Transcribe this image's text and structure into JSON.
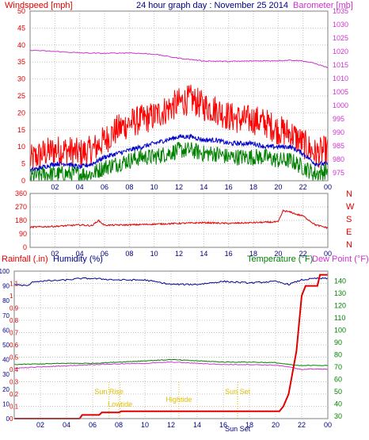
{
  "header": {
    "wind_title": "Windspeed [mph]",
    "graph_title": "24 hour graph day : November 25 2014",
    "baro_title": "Barometer [mb]"
  },
  "direction_labels": [
    "N",
    "W",
    "S",
    "E",
    "N"
  ],
  "bottom_header": {
    "rain_title": "Rainfall (.in)",
    "humidity_title": "Humidity (%)",
    "temp_title": "Temperature (°F)",
    "dew_title": "Dew Point (°F)"
  },
  "colors": {
    "wind": "#e00000",
    "gust": "#ff0000",
    "avg": "#0000cc",
    "low": "#008000",
    "baro": "#cc33cc",
    "rain": "#e00000",
    "humidity": "#00008b",
    "temp": "#008000",
    "dew": "#cc33cc",
    "annot": "#e0c000"
  },
  "chart_data": [
    {
      "type": "line",
      "title": "24 hour graph day : November 25 2014",
      "ylabel": "Windspeed [mph]",
      "y2label": "Barometer [mb]",
      "x_ticks": [
        "02",
        "04",
        "06",
        "08",
        "10",
        "12",
        "14",
        "16",
        "18",
        "20",
        "22",
        "00"
      ],
      "ylim": [
        0,
        50
      ],
      "y_ticks": [
        0,
        5,
        10,
        15,
        20,
        25,
        30,
        35,
        40,
        45,
        50
      ],
      "y2lim": [
        972,
        1035
      ],
      "y2_ticks": [
        975,
        980,
        985,
        990,
        995,
        1000,
        1005,
        1010,
        1015,
        1020,
        1025,
        1030,
        1035
      ],
      "grid": true,
      "series": [
        {
          "name": "Gust",
          "x": [
            0,
            1,
            2,
            3,
            4,
            5,
            6,
            7,
            8,
            9,
            10,
            11,
            12,
            13,
            14,
            15,
            16,
            17,
            18,
            19,
            20,
            21,
            22,
            23,
            24
          ],
          "values": [
            6,
            8,
            9,
            9,
            8,
            9,
            12,
            15,
            17,
            18,
            19,
            21,
            23,
            24,
            22,
            21,
            19,
            18,
            18,
            17,
            15,
            14,
            11,
            8,
            9
          ]
        },
        {
          "name": "Average",
          "x": [
            0,
            1,
            2,
            3,
            4,
            5,
            6,
            7,
            8,
            9,
            10,
            11,
            12,
            13,
            14,
            15,
            16,
            17,
            18,
            19,
            20,
            21,
            22,
            23,
            24
          ],
          "values": [
            3,
            4,
            5,
            5,
            4,
            5,
            7,
            8,
            9,
            10,
            11,
            12,
            13,
            13,
            12,
            12,
            11,
            11,
            11,
            10,
            10,
            10,
            8,
            5,
            5
          ]
        },
        {
          "name": "Minimum",
          "x": [
            0,
            1,
            2,
            3,
            4,
            5,
            6,
            7,
            8,
            9,
            10,
            11,
            12,
            13,
            14,
            15,
            16,
            17,
            18,
            19,
            20,
            21,
            22,
            23,
            24
          ],
          "values": [
            1,
            2,
            2,
            2,
            2,
            2,
            4,
            5,
            6,
            7,
            7,
            8,
            9,
            9,
            8,
            8,
            7,
            7,
            7,
            7,
            6,
            6,
            4,
            2,
            3
          ]
        },
        {
          "name": "Barometer",
          "axis": "y2",
          "x": [
            0,
            2,
            4,
            6,
            8,
            10,
            12,
            14,
            16,
            18,
            20,
            21,
            22,
            23,
            24
          ],
          "values": [
            1020.5,
            1020,
            1019.5,
            1019.3,
            1019.5,
            1019,
            1017.5,
            1016.5,
            1016.3,
            1016.5,
            1016.6,
            1016.8,
            1016.5,
            1015.5,
            1014
          ]
        }
      ]
    },
    {
      "type": "line",
      "ylabel": "",
      "x_ticks": [
        "02",
        "04",
        "06",
        "08",
        "10",
        "12",
        "14",
        "16",
        "18",
        "20",
        "22",
        "00"
      ],
      "ylim": [
        0,
        360
      ],
      "y_ticks": [
        0,
        90,
        180,
        270,
        360
      ],
      "grid": true,
      "series": [
        {
          "name": "Wind direction",
          "x": [
            0,
            2,
            4,
            5,
            5.5,
            6,
            8,
            10,
            12,
            14,
            16,
            18,
            20,
            20.4,
            21,
            21.5,
            22,
            22.5,
            23,
            24
          ],
          "values": [
            135,
            140,
            150,
            145,
            180,
            148,
            150,
            155,
            160,
            165,
            160,
            165,
            170,
            245,
            235,
            220,
            210,
            180,
            150,
            130
          ]
        }
      ]
    },
    {
      "type": "line",
      "ylabel": "Rainfall (.in)",
      "y3label": "Humidity (%)",
      "y2label": "Temperature (°F)",
      "x_ticks": [
        "02",
        "04",
        "06",
        "08",
        "10",
        "12",
        "14",
        "16",
        "18",
        "20",
        "22",
        "00"
      ],
      "ylim": [
        0,
        1.2
      ],
      "y_ticks": [
        0,
        0.1,
        0.2,
        0.3,
        0.4,
        0.5,
        0.6,
        0.7,
        0.8,
        0.9,
        1,
        1.1
      ],
      "y3lim": [
        0,
        100
      ],
      "y3_ticks": [
        0,
        10,
        20,
        30,
        40,
        50,
        60,
        70,
        80,
        90,
        100
      ],
      "y2lim": [
        28,
        148
      ],
      "y2_ticks": [
        30,
        40,
        50,
        60,
        70,
        80,
        90,
        100,
        110,
        120,
        130,
        140
      ],
      "grid": true,
      "annotations": [
        {
          "text": "Sun Rise",
          "x": 7.25
        },
        {
          "text": "Lowtide",
          "x": 8.1
        },
        {
          "text": "Hightide",
          "x": 12.6
        },
        {
          "text": "Sun Set",
          "x": 17.1
        },
        {
          "text": "Sun Set",
          "x": 17.1
        }
      ],
      "series": [
        {
          "name": "Rainfall",
          "axis": "y",
          "x": [
            0,
            5,
            5.2,
            6.5,
            6.7,
            8,
            8.2,
            20.3,
            20.6,
            21,
            21.6,
            22,
            22.3,
            23.2,
            23.4,
            24
          ],
          "values": [
            0,
            0,
            0.03,
            0.03,
            0.05,
            0.05,
            0.06,
            0.06,
            0.1,
            0.2,
            0.55,
            1.0,
            1.08,
            1.08,
            1.17,
            1.17
          ]
        },
        {
          "name": "Humidity",
          "axis": "y3",
          "x": [
            0,
            1,
            1.5,
            4,
            5,
            6,
            8,
            10,
            12,
            14,
            16,
            18,
            20,
            21,
            22,
            23,
            24
          ],
          "values": [
            91,
            90,
            93,
            94,
            95,
            95,
            94,
            94,
            91,
            91,
            93,
            92,
            93,
            91,
            94,
            95,
            95
          ]
        },
        {
          "name": "Temperature",
          "axis": "y2",
          "x": [
            0,
            2,
            4,
            6,
            8,
            10,
            12,
            14,
            16,
            18,
            20,
            21,
            22,
            23,
            24
          ],
          "values": [
            72,
            72.5,
            73,
            73,
            74,
            75,
            76,
            75,
            74,
            74,
            73.5,
            72,
            71,
            71.5,
            71
          ]
        },
        {
          "name": "Dew Point",
          "axis": "y2",
          "x": [
            0,
            2,
            4,
            6,
            8,
            10,
            12,
            14,
            16,
            18,
            20,
            21,
            22,
            23,
            24
          ],
          "values": [
            69,
            70,
            71,
            72,
            72.5,
            73,
            74,
            73,
            72,
            72,
            71.5,
            70,
            68,
            68.5,
            68
          ]
        }
      ]
    }
  ]
}
